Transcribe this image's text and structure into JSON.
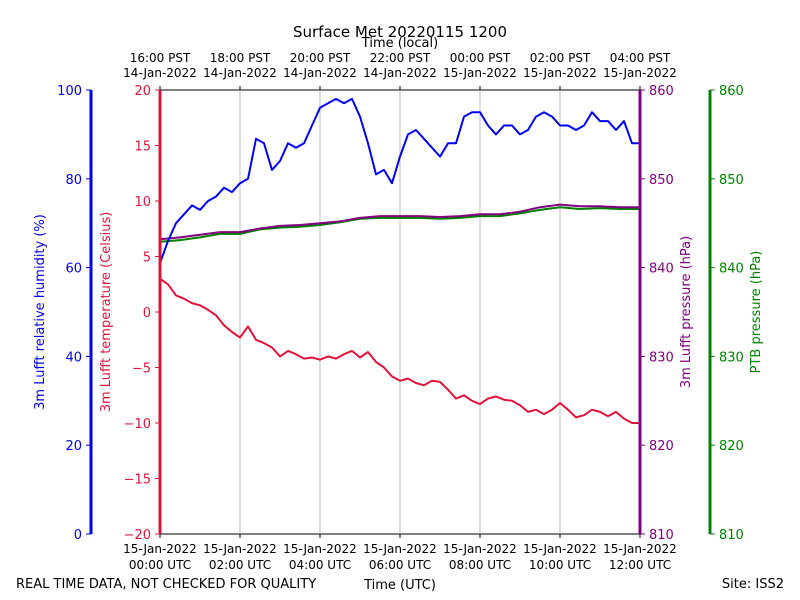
{
  "chart_data": {
    "type": "line",
    "title": "Surface Met 20220115 1200",
    "top_axis_label": "Time (local)",
    "bottom_axis_label": "Time (UTC)",
    "footer_left": "REAL TIME DATA, NOT CHECKED FOR QUALITY",
    "footer_right": "Site: ISS2",
    "x_range_hours": [
      0,
      12
    ],
    "x_ticks": [
      {
        "h": 0,
        "utc_date": "15-Jan-2022",
        "utc_time": "00:00 UTC",
        "local_time": "16:00 PST",
        "local_date": "14-Jan-2022"
      },
      {
        "h": 2,
        "utc_date": "15-Jan-2022",
        "utc_time": "02:00 UTC",
        "local_time": "18:00 PST",
        "local_date": "14-Jan-2022"
      },
      {
        "h": 4,
        "utc_date": "15-Jan-2022",
        "utc_time": "04:00 UTC",
        "local_time": "20:00 PST",
        "local_date": "14-Jan-2022"
      },
      {
        "h": 6,
        "utc_date": "15-Jan-2022",
        "utc_time": "06:00 UTC",
        "local_time": "22:00 PST",
        "local_date": "14-Jan-2022"
      },
      {
        "h": 8,
        "utc_date": "15-Jan-2022",
        "utc_time": "08:00 UTC",
        "local_time": "00:00 PST",
        "local_date": "15-Jan-2022"
      },
      {
        "h": 10,
        "utc_date": "15-Jan-2022",
        "utc_time": "10:00 UTC",
        "local_time": "02:00 PST",
        "local_date": "15-Jan-2022"
      },
      {
        "h": 12,
        "utc_date": "15-Jan-2022",
        "utc_time": "12:00 UTC",
        "local_time": "04:00 PST",
        "local_date": "15-Jan-2022"
      }
    ],
    "axes": [
      {
        "key": "rh",
        "label": "3m Lufft relative humidity (%)",
        "color": "#0000ee",
        "range": [
          0,
          100
        ],
        "ticks": [
          "0",
          "20",
          "40",
          "60",
          "80",
          "100"
        ]
      },
      {
        "key": "temp",
        "label": "3m Lufft temperature (Celsius)",
        "color": "#dc143c",
        "range": [
          -20,
          20
        ],
        "ticks": [
          "−20",
          "−15",
          "−10",
          "−5",
          "0",
          "5",
          "10",
          "15",
          "20"
        ]
      },
      {
        "key": "pres",
        "label": "3m Lufft pressure (hPa)",
        "color": "#800080",
        "range": [
          810,
          860
        ],
        "ticks": [
          "810",
          "820",
          "830",
          "840",
          "850",
          "860"
        ]
      },
      {
        "key": "ptb",
        "label": "PTB pressure (hPa)",
        "color": "#008000",
        "range": [
          810,
          860
        ],
        "ticks": [
          "810",
          "820",
          "830",
          "840",
          "850",
          "860"
        ]
      }
    ],
    "series": [
      {
        "name": "3m Lufft relative humidity (%)",
        "axis": "rh",
        "color": "#0000ee",
        "x": [
          0,
          0.2,
          0.4,
          0.6,
          0.8,
          1.0,
          1.2,
          1.4,
          1.6,
          1.8,
          2.0,
          2.2,
          2.4,
          2.6,
          2.8,
          3.0,
          3.2,
          3.4,
          3.6,
          3.8,
          4.0,
          4.2,
          4.4,
          4.6,
          4.8,
          5.0,
          5.2,
          5.4,
          5.6,
          5.8,
          6.0,
          6.2,
          6.4,
          6.6,
          6.8,
          7.0,
          7.2,
          7.4,
          7.6,
          7.8,
          8.0,
          8.2,
          8.4,
          8.6,
          8.8,
          9.0,
          9.2,
          9.4,
          9.6,
          9.8,
          10.0,
          10.2,
          10.4,
          10.6,
          10.8,
          11.0,
          11.2,
          11.4,
          11.6,
          11.8,
          12.0
        ],
        "values": [
          61,
          66,
          70,
          72,
          74,
          73,
          75,
          76,
          78,
          77,
          79,
          80,
          89,
          88,
          82,
          84,
          88,
          87,
          88,
          92,
          96,
          97,
          98,
          97,
          98,
          94,
          88,
          81,
          82,
          79,
          85,
          90,
          91,
          89,
          87,
          85,
          88,
          88,
          94,
          95,
          95,
          92,
          90,
          92,
          92,
          90,
          91,
          94,
          95,
          94,
          92,
          92,
          91,
          92,
          95,
          93,
          93,
          91,
          93,
          88,
          88
        ]
      },
      {
        "name": "3m Lufft temperature (Celsius)",
        "axis": "temp",
        "color": "#dc143c",
        "x": [
          0,
          0.2,
          0.4,
          0.6,
          0.8,
          1.0,
          1.2,
          1.4,
          1.6,
          1.8,
          2.0,
          2.2,
          2.4,
          2.6,
          2.8,
          3.0,
          3.2,
          3.4,
          3.6,
          3.8,
          4.0,
          4.2,
          4.4,
          4.6,
          4.8,
          5.0,
          5.2,
          5.4,
          5.6,
          5.8,
          6.0,
          6.2,
          6.4,
          6.6,
          6.8,
          7.0,
          7.2,
          7.4,
          7.6,
          7.8,
          8.0,
          8.2,
          8.4,
          8.6,
          8.8,
          9.0,
          9.2,
          9.4,
          9.6,
          9.8,
          10.0,
          10.2,
          10.4,
          10.6,
          10.8,
          11.0,
          11.2,
          11.4,
          11.6,
          11.8,
          12.0
        ],
        "values": [
          3.0,
          2.5,
          1.5,
          1.2,
          0.8,
          0.6,
          0.2,
          -0.3,
          -1.2,
          -1.8,
          -2.3,
          -1.3,
          -2.5,
          -2.8,
          -3.2,
          -4.0,
          -3.5,
          -3.8,
          -4.2,
          -4.1,
          -4.3,
          -4.0,
          -4.2,
          -3.8,
          -3.5,
          -4.1,
          -3.6,
          -4.5,
          -5.0,
          -5.8,
          -6.2,
          -6.0,
          -6.4,
          -6.6,
          -6.2,
          -6.3,
          -7.0,
          -7.8,
          -7.5,
          -8.0,
          -8.3,
          -7.8,
          -7.6,
          -7.9,
          -8.0,
          -8.4,
          -9.0,
          -8.8,
          -9.2,
          -8.8,
          -8.2,
          -8.8,
          -9.5,
          -9.3,
          -8.8,
          -9.0,
          -9.4,
          -9.0,
          -9.6,
          -10.0,
          -10.0
        ]
      },
      {
        "name": "3m Lufft pressure (hPa)",
        "axis": "pres",
        "color": "#800080",
        "x": [
          0,
          0.5,
          1.0,
          1.5,
          2.0,
          2.5,
          3.0,
          3.5,
          4.0,
          4.5,
          5.0,
          5.5,
          6.0,
          6.5,
          7.0,
          7.5,
          8.0,
          8.5,
          9.0,
          9.5,
          10.0,
          10.5,
          11.0,
          11.5,
          12.0
        ],
        "values": [
          843.2,
          843.4,
          843.7,
          844.0,
          844.0,
          844.4,
          844.7,
          844.8,
          845.0,
          845.2,
          845.6,
          845.8,
          845.8,
          845.8,
          845.7,
          845.8,
          846.0,
          846.0,
          846.3,
          846.8,
          847.1,
          846.9,
          846.9,
          846.8,
          846.8
        ]
      },
      {
        "name": "PTB pressure (hPa)",
        "axis": "ptb",
        "color": "#008000",
        "x": [
          0,
          0.5,
          1.0,
          1.5,
          2.0,
          2.5,
          3.0,
          3.5,
          4.0,
          4.5,
          5.0,
          5.5,
          6.0,
          6.5,
          7.0,
          7.5,
          8.0,
          8.5,
          9.0,
          9.5,
          10.0,
          10.5,
          11.0,
          11.5,
          12.0
        ],
        "values": [
          842.9,
          843.1,
          843.4,
          843.8,
          843.8,
          844.3,
          844.5,
          844.6,
          844.8,
          845.1,
          845.5,
          845.6,
          845.6,
          845.6,
          845.5,
          845.6,
          845.8,
          845.8,
          846.1,
          846.5,
          846.8,
          846.6,
          846.7,
          846.6,
          846.6
        ]
      }
    ]
  }
}
